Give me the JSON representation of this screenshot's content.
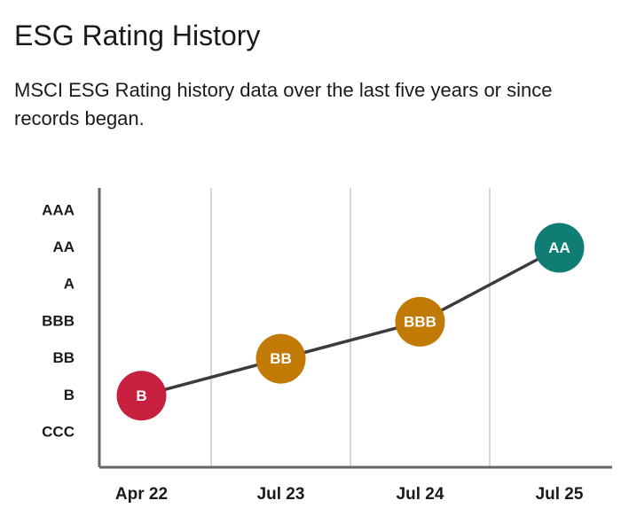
{
  "chart_data": {
    "type": "line",
    "title": "ESG Rating History",
    "subtitle": "MSCI ESG Rating history data over the last five years or since records began.",
    "categories": [
      "Apr 22",
      "Jul 23",
      "Jul 24",
      "Jul 25"
    ],
    "y_categories": [
      "CCC",
      "B",
      "BB",
      "BBB",
      "A",
      "AA",
      "AAA"
    ],
    "values": [
      "B",
      "BB",
      "BBB",
      "AA"
    ],
    "colors": [
      "#c8203f",
      "#c27a06",
      "#c27a06",
      "#0f7d73"
    ],
    "line_color": "#3b3b3b",
    "grid": true
  }
}
